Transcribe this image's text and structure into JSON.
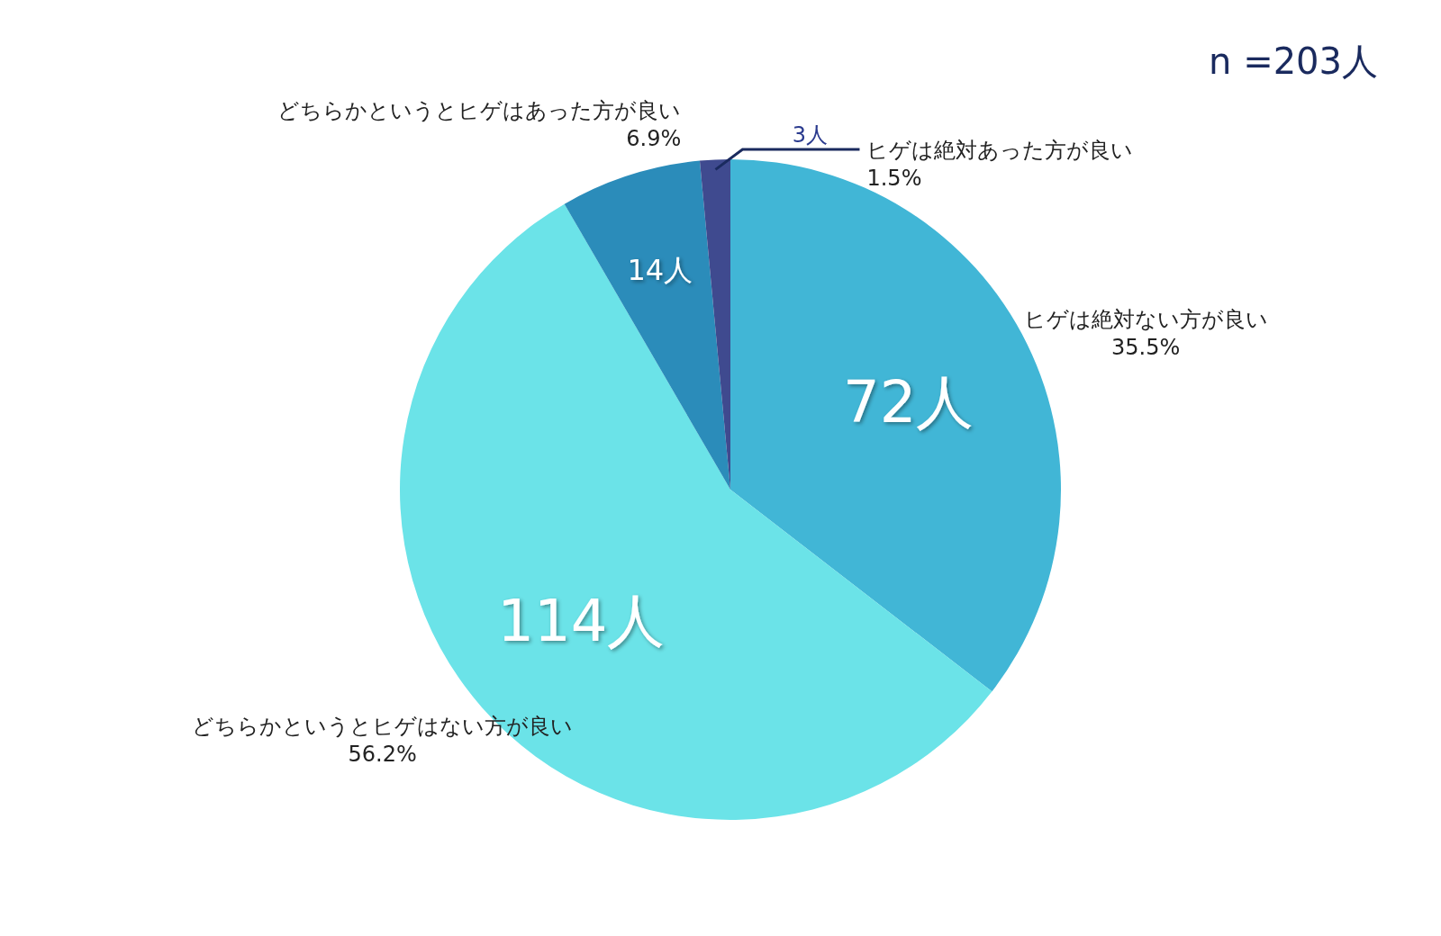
{
  "chart_data": {
    "type": "pie",
    "title": "n =203人",
    "categories": [
      "ヒゲは絶対ない方が良い\n35.5%",
      "どちらかというとヒゲはない方が良い\n56.2%",
      "どちらかというとヒゲはあった方が良い\n6.9%",
      "ヒゲは絶対あった方が良い\n1.5%"
    ],
    "values": [
      72,
      114,
      14,
      3
    ],
    "value_labels": [
      "72人",
      "114人",
      "14人",
      "3人"
    ],
    "colors": [
      "#41b6d6",
      "#6be3e8",
      "#2b8cba",
      "#3f4a8f"
    ]
  }
}
